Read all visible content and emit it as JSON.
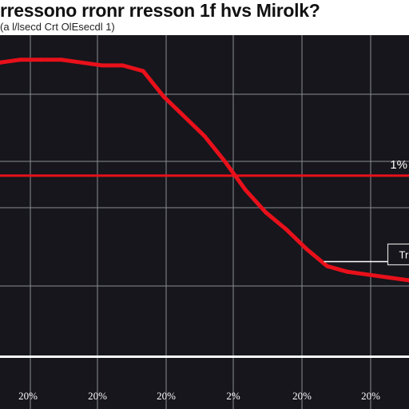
{
  "title": "rressono rronr rresson 1f hvs Mirolk?",
  "subtitle": "(a l/lsecd Crt OlEsecdl 1)",
  "chart_data": {
    "type": "line",
    "title": "rressono rronr rresson 1f hvs Mirolk?",
    "xlabel": "",
    "ylabel": "",
    "x": [
      0,
      1,
      2,
      3,
      4,
      5,
      6,
      7,
      8,
      9,
      10,
      11,
      12,
      13,
      14,
      15,
      16,
      17,
      18,
      19,
      20
    ],
    "x_tick_labels": [
      "20%",
      "20%",
      "20%",
      "2%",
      "20%",
      "20%"
    ],
    "xlim": [
      0,
      20
    ],
    "ylim": [
      0,
      100
    ],
    "grid": true,
    "series": [
      {
        "color": "#e8101a",
        "values": [
          92,
          93,
          93,
          93,
          92,
          91,
          91,
          89,
          80,
          73,
          66,
          57,
          47,
          39,
          33,
          26,
          20,
          18,
          17,
          16,
          15
        ]
      }
    ],
    "reference_lines": [
      {
        "orientation": "horizontal",
        "value": 52,
        "color": "#e8101a",
        "label": "1%"
      },
      {
        "orientation": "horizontal",
        "value": -12,
        "color": "#ffffff",
        "label": ""
      }
    ],
    "annotations": [
      {
        "text": "Trlek",
        "x": 19.2,
        "y": 25
      }
    ]
  }
}
